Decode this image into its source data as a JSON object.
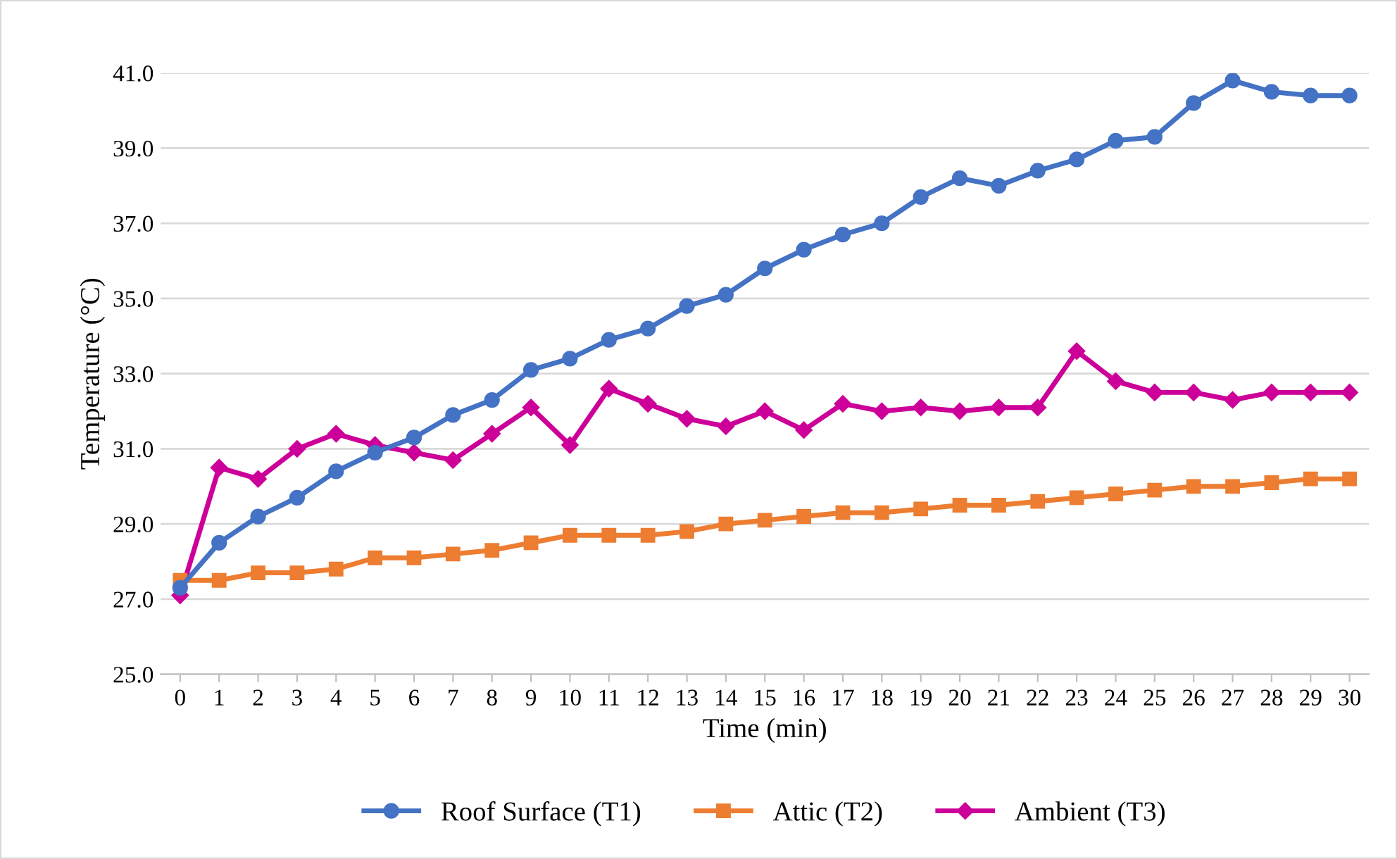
{
  "chart_data": {
    "type": "line",
    "xlabel": "Time (min)",
    "ylabel": "Temperature (°C)",
    "categories": [
      "0",
      "1",
      "2",
      "3",
      "4",
      "5",
      "6",
      "7",
      "8",
      "9",
      "10",
      "11",
      "12",
      "13",
      "14",
      "15",
      "16",
      "17",
      "18",
      "19",
      "20",
      "21",
      "22",
      "23",
      "24",
      "25",
      "26",
      "27",
      "28",
      "29",
      "30"
    ],
    "series": [
      {
        "name": "Roof Surface (T1)",
        "color": "#4472c4",
        "marker": "circle",
        "values": [
          27.3,
          28.5,
          29.2,
          29.7,
          30.4,
          30.9,
          31.3,
          31.9,
          32.3,
          33.1,
          33.4,
          33.9,
          34.2,
          34.8,
          35.1,
          35.8,
          36.3,
          36.7,
          37.0,
          37.7,
          38.2,
          38.0,
          38.4,
          38.7,
          39.2,
          39.3,
          40.2,
          40.8,
          40.5,
          40.4,
          40.4
        ]
      },
      {
        "name": "Attic (T2)",
        "color": "#ed7d31",
        "marker": "square",
        "values": [
          27.5,
          27.5,
          27.7,
          27.7,
          27.8,
          28.1,
          28.1,
          28.2,
          28.3,
          28.5,
          28.7,
          28.7,
          28.7,
          28.8,
          29.0,
          29.1,
          29.2,
          29.3,
          29.3,
          29.4,
          29.5,
          29.5,
          29.6,
          29.7,
          29.8,
          29.9,
          30.0,
          30.0,
          30.1,
          30.2,
          30.2
        ]
      },
      {
        "name": "Ambient (T3)",
        "color": "#cc0099",
        "marker": "diamond",
        "values": [
          27.1,
          30.5,
          30.2,
          31.0,
          31.4,
          31.1,
          30.9,
          30.7,
          31.4,
          32.1,
          31.1,
          32.6,
          32.2,
          31.8,
          31.6,
          32.0,
          31.5,
          32.2,
          32.0,
          32.1,
          32.0,
          32.1,
          32.1,
          33.6,
          32.8,
          32.5,
          32.5,
          32.3,
          32.5,
          32.5,
          32.5
        ]
      }
    ],
    "ylim": [
      25,
      41
    ],
    "yticks": [
      {
        "value": 25,
        "label": "25.0"
      },
      {
        "value": 27,
        "label": "27.0"
      },
      {
        "value": 29,
        "label": "29.0"
      },
      {
        "value": 31,
        "label": "31.0"
      },
      {
        "value": 33,
        "label": "33.0"
      },
      {
        "value": 35,
        "label": "35.0"
      },
      {
        "value": 37,
        "label": "37.0"
      },
      {
        "value": 39,
        "label": "39.0"
      },
      {
        "value": 41,
        "label": "41.0"
      }
    ],
    "grid": "y",
    "legend": "bottom",
    "line_style": "solid"
  }
}
